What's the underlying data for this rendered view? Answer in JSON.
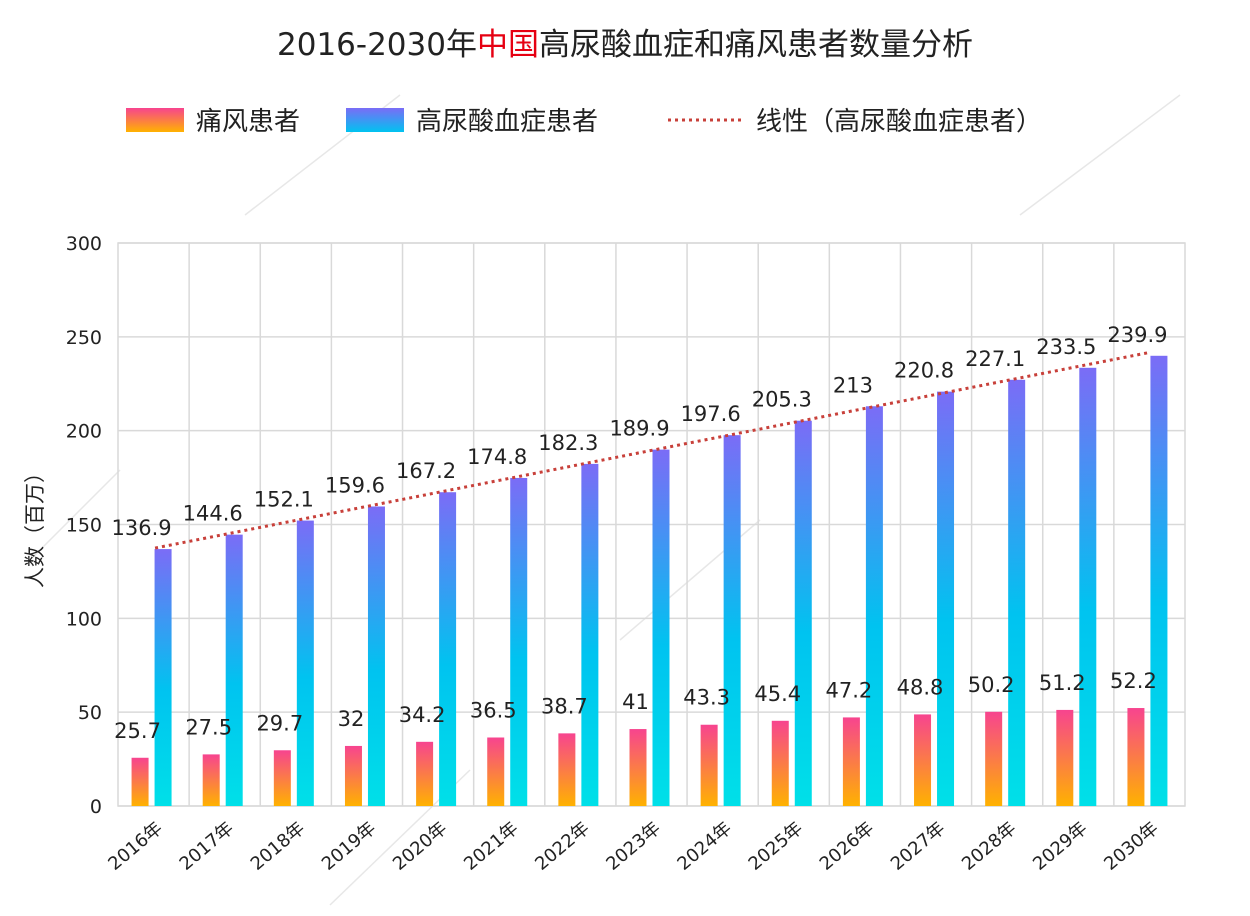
{
  "chart_data": {
    "type": "bar",
    "title": {
      "prefix": "2016-2030年",
      "highlight": "中国",
      "suffix": "高尿酸血症和痛风患者数量分析"
    },
    "ylabel": "人数（百万）",
    "xlabel": "",
    "ylim": [
      0,
      300
    ],
    "yticks": [
      0,
      50,
      100,
      150,
      200,
      250,
      300
    ],
    "grid": true,
    "legend_position": "top",
    "categories": [
      "2016年",
      "2017年",
      "2018年",
      "2019年",
      "2020年",
      "2021年",
      "2022年",
      "2023年",
      "2024年",
      "2025年",
      "2026年",
      "2027年",
      "2028年",
      "2029年",
      "2030年"
    ],
    "series": [
      {
        "name": "痛风患者",
        "values": [
          25.7,
          27.5,
          29.7,
          32,
          34.2,
          36.5,
          38.7,
          41,
          43.3,
          45.4,
          47.2,
          48.8,
          50.2,
          51.2,
          52.2
        ],
        "labels": [
          "25.7",
          "27.5",
          "29.7",
          "32",
          "34.2",
          "36.5",
          "38.7",
          "41",
          "43.3",
          "45.4",
          "47.2",
          "48.8",
          "50.2",
          "51.2",
          "52.2"
        ]
      },
      {
        "name": "高尿酸血症患者",
        "values": [
          136.9,
          144.6,
          152.1,
          159.6,
          167.2,
          174.8,
          182.3,
          189.9,
          197.6,
          205.3,
          213,
          220.8,
          227.1,
          233.5,
          239.9
        ],
        "labels": [
          "136.9",
          "144.6",
          "152.1",
          "159.6",
          "167.2",
          "174.8",
          "182.3",
          "189.9",
          "197.6",
          "205.3",
          "213",
          "220.8",
          "227.1",
          "233.5",
          "239.9"
        ]
      }
    ],
    "trendline": {
      "name": "线性（高尿酸血症患者）",
      "of_series": "高尿酸血症患者",
      "color": "#c8403a"
    }
  },
  "colors": {
    "title_highlight": "#e60012",
    "gout_gradient": [
      "#f7448f",
      "#ffb200"
    ],
    "hyper_gradient": [
      "#7b6cf6",
      "#00c3f0",
      "#00e0e8"
    ],
    "gridline": "#d9d9d9"
  }
}
